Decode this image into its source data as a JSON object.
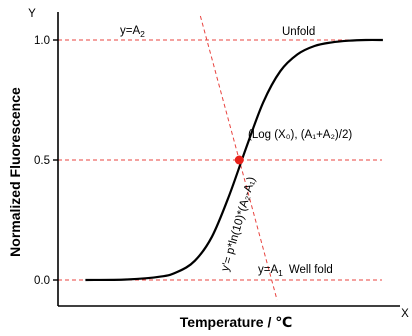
{
  "chart_data": {
    "type": "line",
    "title": "",
    "xlabel": "Temperature / ℃",
    "ylabel": "Normalized Fluorescence",
    "x_axis_letter": "X",
    "y_axis_letter": "Y",
    "yticks": [
      "0.0",
      "0.5",
      "1.0"
    ],
    "ylim": [
      -0.12,
      1.1
    ],
    "xlim": [
      0,
      10
    ],
    "grid": false,
    "legend": "none",
    "reference_lines": [
      {
        "y": 1.0,
        "label": "y=A",
        "sub": "2"
      },
      {
        "y": 0.5
      },
      {
        "y": 0.0,
        "label": "y=A",
        "sub": "1",
        "label2": "Well fold"
      }
    ],
    "series": [
      {
        "x": [
          0.8,
          2.0,
          3.0,
          3.5,
          4.0,
          4.5,
          5.0,
          5.5,
          6.0,
          6.5,
          7.0,
          7.5,
          8.0,
          8.5,
          9.0,
          9.5
        ],
        "y": [
          0.0,
          0.002,
          0.014,
          0.034,
          0.08,
          0.18,
          0.35,
          0.55,
          0.74,
          0.87,
          0.94,
          0.975,
          0.99,
          0.997,
          1.0,
          1.0
        ]
      }
    ],
    "annotations": {
      "unfold": "Unfold",
      "midpoint": {
        "x": 5.3,
        "y": 0.5,
        "label": "(Log (X₀), (A₁+A₂)/2)"
      },
      "tangent_label": "y'= p*ln(10)*(A₂-A₁)"
    },
    "colors": {
      "curve": "#000000",
      "reference_line": "#e8433f",
      "tangent_line": "#e8433f",
      "midpoint": "#e8211a",
      "axis": "#000000"
    }
  }
}
